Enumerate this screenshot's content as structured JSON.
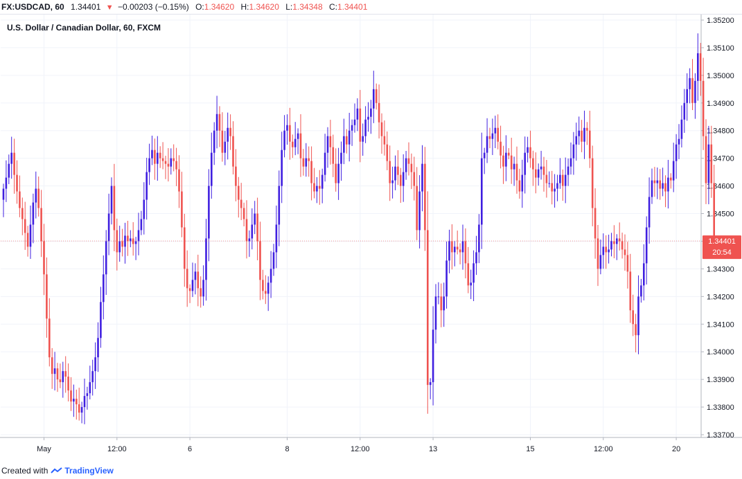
{
  "header": {
    "symbol": "FX:USDCAD, 60",
    "last": "1.34401",
    "change": "−0.00203 (−0.15%)",
    "open_label": "O:",
    "open": "1.34620",
    "high_label": "H:",
    "high": "1.34620",
    "low_label": "L:",
    "low": "1.34348",
    "close_label": "C:",
    "close": "1.34401",
    "down_color": "#ef5350"
  },
  "footer": {
    "created_with": "Created with",
    "brand": "TradingView"
  },
  "chart_data": {
    "type": "candlestick",
    "title": "U.S. Dollar / Canadian Dollar, 60, FXCM",
    "up_color": "#3f1fe0",
    "down_color": "#ef5350",
    "ylim": [
      1.3369,
      1.3522
    ],
    "y_ticks": [
      "1.35200",
      "1.35100",
      "1.35000",
      "1.34900",
      "1.34800",
      "1.34700",
      "1.34600",
      "1.34500",
      "1.34400",
      "1.34300",
      "1.34200",
      "1.34100",
      "1.34000",
      "1.33900",
      "1.33800",
      "1.33700"
    ],
    "x_ticks": [
      {
        "label": "May",
        "bar": 15
      },
      {
        "label": "12:00",
        "bar": 42
      },
      {
        "label": "6",
        "bar": 69
      },
      {
        "label": "8",
        "bar": 105
      },
      {
        "label": "12:00",
        "bar": 132
      },
      {
        "label": "13",
        "bar": 159
      },
      {
        "label": "15",
        "bar": 195
      },
      {
        "label": "12:00",
        "bar": 222
      },
      {
        "label": "20",
        "bar": 249
      }
    ],
    "last_price": "1.34401",
    "countdown": "20:54",
    "grid": true,
    "closes": [
      1.3459,
      1.3463,
      1.3468,
      1.3472,
      1.3464,
      1.3458,
      1.3452,
      1.3448,
      1.3443,
      1.3438,
      1.3446,
      1.3454,
      1.3459,
      1.3452,
      1.344,
      1.3428,
      1.3412,
      1.3398,
      1.3392,
      1.3394,
      1.339,
      1.3389,
      1.3393,
      1.3391,
      1.3386,
      1.3382,
      1.3383,
      1.3381,
      1.3378,
      1.338,
      1.3384,
      1.3385,
      1.3389,
      1.3393,
      1.3398,
      1.3405,
      1.3418,
      1.3428,
      1.344,
      1.345,
      1.346,
      1.3444,
      1.3436,
      1.344,
      1.3438,
      1.3442,
      1.344,
      1.3441,
      1.3439,
      1.344,
      1.3444,
      1.3448,
      1.3455,
      1.3465,
      1.347,
      1.3473,
      1.3468,
      1.3472,
      1.347,
      1.3469,
      1.3468,
      1.3467,
      1.347,
      1.3469,
      1.3466,
      1.3458,
      1.3445,
      1.343,
      1.3423,
      1.3422,
      1.3426,
      1.3429,
      1.3423,
      1.342,
      1.3426,
      1.3441,
      1.346,
      1.3472,
      1.348,
      1.3486,
      1.348,
      1.3472,
      1.3476,
      1.3481,
      1.3478,
      1.3467,
      1.346,
      1.3455,
      1.3452,
      1.3448,
      1.344,
      1.3441,
      1.3446,
      1.345,
      1.344,
      1.3426,
      1.3422,
      1.3421,
      1.3425,
      1.343,
      1.3436,
      1.3446,
      1.346,
      1.3473,
      1.348,
      1.3482,
      1.3476,
      1.3474,
      1.3477,
      1.3479,
      1.347,
      1.3467,
      1.347,
      1.3469,
      1.3461,
      1.3458,
      1.346,
      1.3459,
      1.3464,
      1.3472,
      1.3478,
      1.3474,
      1.3468,
      1.3461,
      1.3468,
      1.3472,
      1.3478,
      1.3475,
      1.348,
      1.3482,
      1.3484,
      1.3488,
      1.3476,
      1.3478,
      1.3484,
      1.3485,
      1.3488,
      1.3495,
      1.349,
      1.3483,
      1.3478,
      1.3475,
      1.3469,
      1.3461,
      1.3462,
      1.3467,
      1.3464,
      1.346,
      1.3465,
      1.347,
      1.3468,
      1.3465,
      1.346,
      1.3444,
      1.3458,
      1.3468,
      1.3444,
      1.3388,
      1.3389,
      1.3408,
      1.342,
      1.342,
      1.3415,
      1.342,
      1.3433,
      1.344,
      1.3436,
      1.3438,
      1.3437,
      1.3436,
      1.344,
      1.3432,
      1.3424,
      1.3425,
      1.3432,
      1.3436,
      1.3446,
      1.347,
      1.3472,
      1.3478,
      1.3477,
      1.3479,
      1.3481,
      1.3476,
      1.3471,
      1.3467,
      1.3472,
      1.3471,
      1.3466,
      1.3468,
      1.3462,
      1.3458,
      1.3464,
      1.3472,
      1.3474,
      1.347,
      1.3466,
      1.3463,
      1.3466,
      1.3467,
      1.3464,
      1.3461,
      1.3461,
      1.3458,
      1.3459,
      1.3461,
      1.3464,
      1.346,
      1.3464,
      1.3467,
      1.347,
      1.3475,
      1.3478,
      1.348,
      1.3476,
      1.3481,
      1.348,
      1.347,
      1.3452,
      1.3441,
      1.343,
      1.3435,
      1.3438,
      1.3436,
      1.3437,
      1.344,
      1.3439,
      1.3441,
      1.344,
      1.3437,
      1.3435,
      1.3429,
      1.3415,
      1.341,
      1.3406,
      1.342,
      1.3424,
      1.3432,
      1.3445,
      1.3456,
      1.3462,
      1.3461,
      1.3462,
      1.3459,
      1.3461,
      1.3458,
      1.3463,
      1.3462,
      1.3469,
      1.3475,
      1.3477,
      1.3484,
      1.349,
      1.3495,
      1.3499,
      1.349,
      1.3498,
      1.3508,
      1.3498,
      1.3478,
      1.3461,
      1.3475,
      1.3461,
      1.344
    ]
  }
}
